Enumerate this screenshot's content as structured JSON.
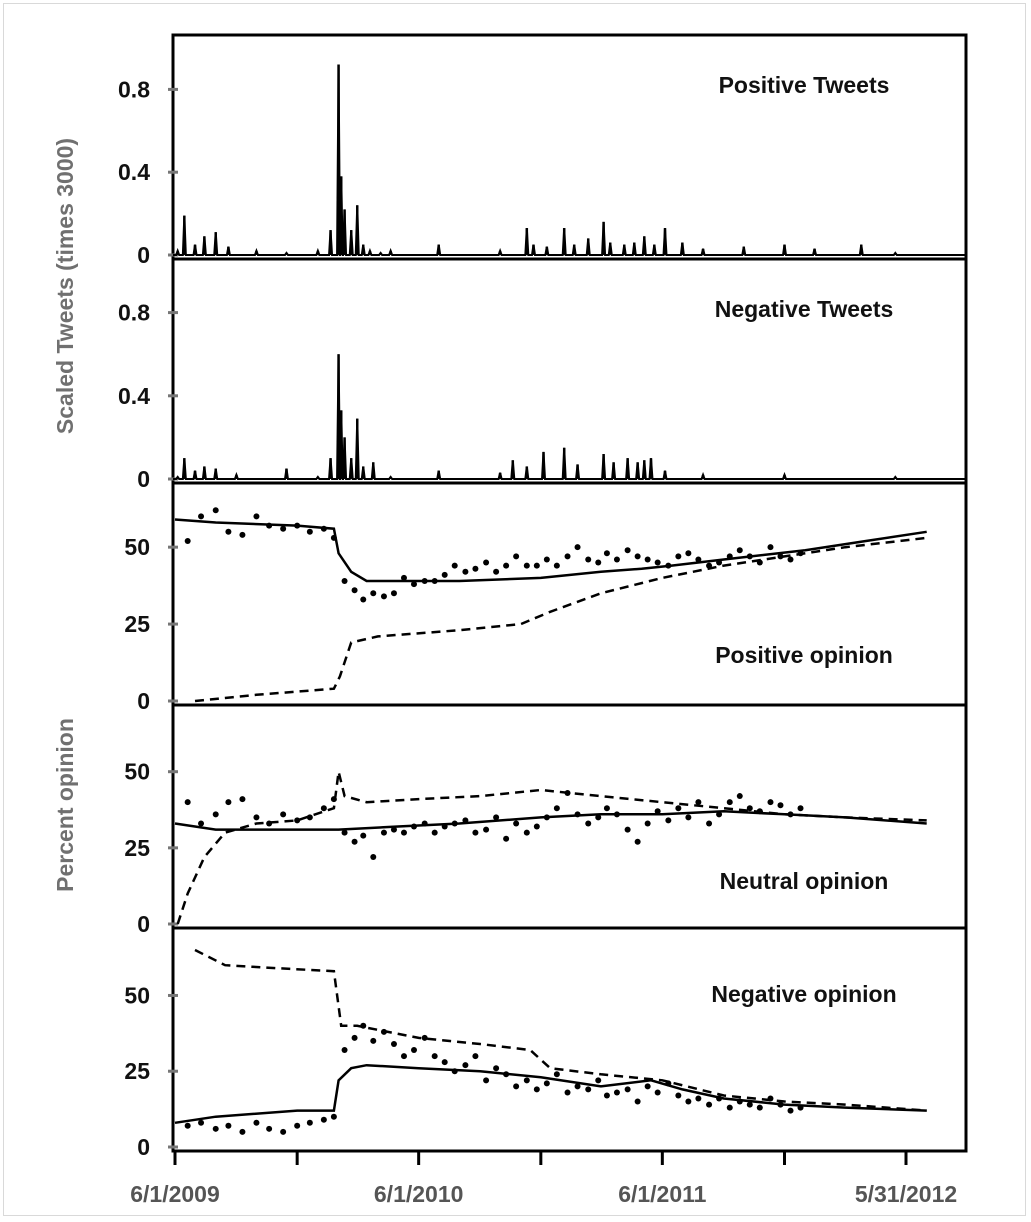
{
  "chart_data": [
    {
      "type": "line",
      "title": "Positive Tweets",
      "ylabel": "Scaled Tweets (times 3000)",
      "yticks": [
        "0.8",
        "0.4",
        "0"
      ],
      "ylim": [
        0,
        1.0
      ],
      "x_dates": [
        "2009-06-05",
        "2009-06-15",
        "2009-07-01",
        "2009-07-15",
        "2009-08-01",
        "2009-08-20",
        "2009-10-01",
        "2009-11-15",
        "2010-01-01",
        "2010-01-20",
        "2010-02-01",
        "2010-02-05",
        "2010-02-10",
        "2010-02-20",
        "2010-03-01",
        "2010-03-10",
        "2010-03-20",
        "2010-04-05",
        "2010-04-20",
        "2010-07-01",
        "2010-10-01",
        "2010-11-10",
        "2010-11-20",
        "2010-12-10",
        "2011-01-05",
        "2011-01-20",
        "2011-02-10",
        "2011-03-05",
        "2011-03-15",
        "2011-04-05",
        "2011-04-20",
        "2011-05-05",
        "2011-05-20",
        "2011-06-05",
        "2011-07-01",
        "2011-08-01",
        "2011-10-01",
        "2011-12-01",
        "2012-01-15",
        "2012-03-25",
        "2012-05-15"
      ],
      "values": [
        0.02,
        0.19,
        0.05,
        0.09,
        0.11,
        0.04,
        0.02,
        0.01,
        0.02,
        0.12,
        0.92,
        0.38,
        0.22,
        0.12,
        0.24,
        0.05,
        0.02,
        0.01,
        0.02,
        0.05,
        0.02,
        0.13,
        0.05,
        0.04,
        0.13,
        0.05,
        0.08,
        0.16,
        0.06,
        0.05,
        0.06,
        0.09,
        0.05,
        0.13,
        0.06,
        0.03,
        0.04,
        0.05,
        0.03,
        0.05,
        0.01
      ]
    },
    {
      "type": "line",
      "title": "Negative Tweets",
      "yticks": [
        "0.8",
        "0.4",
        "0"
      ],
      "ylim": [
        0,
        1.0
      ],
      "x_dates": [
        "2009-06-05",
        "2009-06-15",
        "2009-07-01",
        "2009-07-15",
        "2009-08-01",
        "2009-09-01",
        "2009-11-15",
        "2010-01-01",
        "2010-01-20",
        "2010-02-01",
        "2010-02-05",
        "2010-02-10",
        "2010-02-20",
        "2010-03-01",
        "2010-03-10",
        "2010-03-25",
        "2010-04-20",
        "2010-07-01",
        "2010-10-01",
        "2010-10-20",
        "2010-11-10",
        "2010-12-05",
        "2011-01-05",
        "2011-01-25",
        "2011-03-05",
        "2011-03-20",
        "2011-04-10",
        "2011-04-25",
        "2011-05-05",
        "2011-05-15",
        "2011-06-05",
        "2011-08-01",
        "2011-12-01",
        "2012-05-15"
      ],
      "values": [
        0.01,
        0.1,
        0.04,
        0.06,
        0.05,
        0.02,
        0.05,
        0.01,
        0.1,
        0.6,
        0.33,
        0.2,
        0.1,
        0.29,
        0.06,
        0.08,
        0.01,
        0.04,
        0.03,
        0.09,
        0.06,
        0.13,
        0.15,
        0.07,
        0.12,
        0.08,
        0.1,
        0.08,
        0.09,
        0.1,
        0.04,
        0.02,
        0.02,
        0.01
      ]
    },
    {
      "type": "line",
      "title": "Positive opinion",
      "yticks": [
        "50",
        "25",
        "0"
      ],
      "ylim": [
        0,
        65
      ],
      "ylabel": "Percent opinion",
      "series": [
        {
          "style": "solid",
          "x_dates": [
            "2009-06-01",
            "2009-08-01",
            "2009-12-01",
            "2010-01-25",
            "2010-02-01",
            "2010-02-20",
            "2010-03-15",
            "2010-04-15",
            "2010-08-01",
            "2010-12-01",
            "2011-03-01",
            "2011-05-01",
            "2011-06-15",
            "2011-09-01",
            "2012-01-01",
            "2012-04-01",
            "2012-07-01"
          ],
          "values": [
            59,
            58,
            57,
            56,
            48,
            42,
            39,
            39,
            39,
            40,
            42,
            43,
            44,
            46,
            49,
            52,
            55
          ]
        },
        {
          "style": "dashed",
          "x_dates": [
            "2009-07-01",
            "2009-10-01",
            "2010-01-25",
            "2010-02-03",
            "2010-02-20",
            "2010-04-01",
            "2010-08-01",
            "2010-11-01",
            "2010-12-15",
            "2011-03-01",
            "2011-06-01",
            "2011-09-01",
            "2011-12-01",
            "2012-03-01",
            "2012-07-01"
          ],
          "values": [
            0,
            2,
            4,
            8,
            19,
            21,
            23,
            25,
            29,
            35,
            40,
            44,
            47,
            50,
            53
          ]
        },
        {
          "style": "dots",
          "x_dates": [
            "2009-06-20",
            "2009-07-10",
            "2009-08-01",
            "2009-08-20",
            "2009-09-10",
            "2009-10-01",
            "2009-10-20",
            "2009-11-10",
            "2009-12-01",
            "2009-12-20",
            "2010-01-10",
            "2010-01-25",
            "2010-02-10",
            "2010-02-25",
            "2010-03-10",
            "2010-03-25",
            "2010-04-10",
            "2010-04-25",
            "2010-05-10",
            "2010-05-25",
            "2010-06-10",
            "2010-06-25",
            "2010-07-10",
            "2010-07-25",
            "2010-08-10",
            "2010-08-25",
            "2010-09-10",
            "2010-09-25",
            "2010-10-10",
            "2010-10-25",
            "2010-11-10",
            "2010-11-25",
            "2010-12-10",
            "2010-12-25",
            "2011-01-10",
            "2011-01-25",
            "2011-02-10",
            "2011-02-25",
            "2011-03-10",
            "2011-03-25",
            "2011-04-10",
            "2011-04-25",
            "2011-05-10",
            "2011-05-25",
            "2011-06-10",
            "2011-06-25",
            "2011-07-10",
            "2011-07-25",
            "2011-08-10",
            "2011-08-25",
            "2011-09-10",
            "2011-09-25",
            "2011-10-10",
            "2011-10-25",
            "2011-11-10",
            "2011-11-25",
            "2011-12-10",
            "2011-12-25"
          ],
          "values": [
            52,
            60,
            62,
            55,
            54,
            60,
            57,
            56,
            57,
            55,
            56,
            53,
            39,
            36,
            33,
            35,
            34,
            35,
            40,
            38,
            39,
            39,
            41,
            44,
            42,
            43,
            45,
            42,
            44,
            47,
            44,
            44,
            46,
            44,
            47,
            50,
            46,
            45,
            48,
            46,
            49,
            47,
            46,
            45,
            44,
            47,
            48,
            46,
            44,
            45,
            47,
            49,
            47,
            45,
            50,
            47,
            46,
            48
          ]
        }
      ]
    },
    {
      "type": "line",
      "title": "Neutral opinion",
      "yticks": [
        "50",
        "25",
        "0"
      ],
      "ylim": [
        0,
        65
      ],
      "series": [
        {
          "style": "solid",
          "x_dates": [
            "2009-06-01",
            "2009-08-01",
            "2009-12-01",
            "2010-02-01",
            "2010-05-01",
            "2010-08-01",
            "2010-12-01",
            "2011-03-01",
            "2011-06-01",
            "2011-09-01",
            "2011-12-01",
            "2012-03-01",
            "2012-07-01"
          ],
          "values": [
            33,
            31,
            31,
            31,
            32,
            33,
            35,
            36,
            36,
            37,
            36,
            35,
            33
          ]
        },
        {
          "style": "dashed",
          "x_dates": [
            "2009-06-05",
            "2009-06-20",
            "2009-07-15",
            "2009-08-15",
            "2009-10-01",
            "2009-12-01",
            "2010-01-25",
            "2010-02-01",
            "2010-02-10",
            "2010-03-15",
            "2010-06-01",
            "2010-09-01",
            "2010-12-01",
            "2011-03-01",
            "2011-06-01",
            "2011-09-01",
            "2011-12-01",
            "2012-03-01",
            "2012-07-01"
          ],
          "values": [
            0,
            10,
            22,
            30,
            33,
            34,
            38,
            50,
            42,
            40,
            41,
            42,
            44,
            42,
            40,
            38,
            36,
            35,
            34
          ]
        },
        {
          "style": "dots",
          "x_dates": [
            "2009-06-20",
            "2009-07-10",
            "2009-08-01",
            "2009-08-20",
            "2009-09-10",
            "2009-10-01",
            "2009-10-20",
            "2009-11-10",
            "2009-12-01",
            "2009-12-20",
            "2010-01-10",
            "2010-01-25",
            "2010-02-10",
            "2010-02-25",
            "2010-03-10",
            "2010-03-25",
            "2010-04-10",
            "2010-04-25",
            "2010-05-10",
            "2010-05-25",
            "2010-06-10",
            "2010-06-25",
            "2010-07-10",
            "2010-07-25",
            "2010-08-10",
            "2010-08-25",
            "2010-09-10",
            "2010-09-25",
            "2010-10-10",
            "2010-10-25",
            "2010-11-10",
            "2010-11-25",
            "2010-12-10",
            "2010-12-25",
            "2011-01-10",
            "2011-01-25",
            "2011-02-10",
            "2011-02-25",
            "2011-03-10",
            "2011-03-25",
            "2011-04-10",
            "2011-04-25",
            "2011-05-10",
            "2011-05-25",
            "2011-06-10",
            "2011-06-25",
            "2011-07-10",
            "2011-07-25",
            "2011-08-10",
            "2011-08-25",
            "2011-09-10",
            "2011-09-25",
            "2011-10-10",
            "2011-10-25",
            "2011-11-10",
            "2011-11-25",
            "2011-12-10",
            "2011-12-25"
          ],
          "values": [
            40,
            33,
            36,
            40,
            41,
            35,
            33,
            36,
            34,
            35,
            38,
            41,
            30,
            27,
            29,
            22,
            30,
            31,
            30,
            32,
            33,
            30,
            32,
            33,
            34,
            30,
            31,
            35,
            28,
            33,
            30,
            32,
            35,
            38,
            43,
            36,
            33,
            35,
            38,
            36,
            31,
            27,
            33,
            37,
            34,
            38,
            35,
            40,
            33,
            36,
            40,
            42,
            38,
            37,
            40,
            39,
            36,
            38
          ]
        }
      ]
    },
    {
      "type": "line",
      "title": "Negative opinion",
      "yticks": [
        "50",
        "25",
        "0"
      ],
      "ylim": [
        0,
        65
      ],
      "series": [
        {
          "style": "solid",
          "x_dates": [
            "2009-06-01",
            "2009-08-01",
            "2009-12-01",
            "2010-01-25",
            "2010-02-01",
            "2010-02-20",
            "2010-03-15",
            "2010-06-01",
            "2010-09-01",
            "2010-12-01",
            "2011-03-01",
            "2011-05-15",
            "2011-07-01",
            "2011-09-01",
            "2011-12-01",
            "2012-03-01",
            "2012-07-01"
          ],
          "values": [
            8,
            10,
            12,
            12,
            22,
            26,
            27,
            26,
            25,
            23,
            20,
            22,
            19,
            16,
            14,
            13,
            12
          ]
        },
        {
          "style": "dashed",
          "x_dates": [
            "2009-07-01",
            "2009-08-15",
            "2009-11-01",
            "2010-01-25",
            "2010-02-05",
            "2010-03-01",
            "2010-06-01",
            "2010-09-01",
            "2010-11-15",
            "2010-12-15",
            "2011-03-01",
            "2011-06-01",
            "2011-09-01",
            "2011-12-01",
            "2012-03-01",
            "2012-07-01"
          ],
          "values": [
            65,
            60,
            59,
            58,
            40,
            40,
            36,
            34,
            32,
            26,
            24,
            22,
            17,
            15,
            14,
            12
          ]
        },
        {
          "style": "dots",
          "x_dates": [
            "2009-06-20",
            "2009-07-10",
            "2009-08-01",
            "2009-08-20",
            "2009-09-10",
            "2009-10-01",
            "2009-10-20",
            "2009-11-10",
            "2009-12-01",
            "2009-12-20",
            "2010-01-10",
            "2010-01-25",
            "2010-02-10",
            "2010-02-25",
            "2010-03-10",
            "2010-03-25",
            "2010-04-10",
            "2010-04-25",
            "2010-05-10",
            "2010-05-25",
            "2010-06-10",
            "2010-06-25",
            "2010-07-10",
            "2010-07-25",
            "2010-08-10",
            "2010-08-25",
            "2010-09-10",
            "2010-09-25",
            "2010-10-10",
            "2010-10-25",
            "2010-11-10",
            "2010-11-25",
            "2010-12-10",
            "2010-12-25",
            "2011-01-10",
            "2011-01-25",
            "2011-02-10",
            "2011-02-25",
            "2011-03-10",
            "2011-03-25",
            "2011-04-10",
            "2011-04-25",
            "2011-05-10",
            "2011-05-25",
            "2011-06-10",
            "2011-06-25",
            "2011-07-10",
            "2011-07-25",
            "2011-08-10",
            "2011-08-25",
            "2011-09-10",
            "2011-09-25",
            "2011-10-10",
            "2011-10-25",
            "2011-11-10",
            "2011-11-25",
            "2011-12-10",
            "2011-12-25"
          ],
          "values": [
            7,
            8,
            6,
            7,
            5,
            8,
            6,
            5,
            7,
            8,
            9,
            10,
            32,
            36,
            40,
            35,
            38,
            34,
            30,
            32,
            36,
            30,
            28,
            25,
            27,
            30,
            22,
            26,
            24,
            20,
            22,
            19,
            21,
            24,
            18,
            20,
            19,
            22,
            17,
            18,
            19,
            15,
            20,
            18,
            21,
            17,
            15,
            16,
            14,
            16,
            13,
            15,
            14,
            13,
            16,
            14,
            12,
            13
          ]
        }
      ]
    }
  ],
  "x_axis": {
    "tick_labels": [
      "6/1/2009",
      "6/1/2010",
      "6/1/2011",
      "5/31/2012"
    ]
  },
  "y_axis_labels": {
    "top": "Scaled Tweets (times 3000)",
    "bottom": "Percent opinion"
  }
}
